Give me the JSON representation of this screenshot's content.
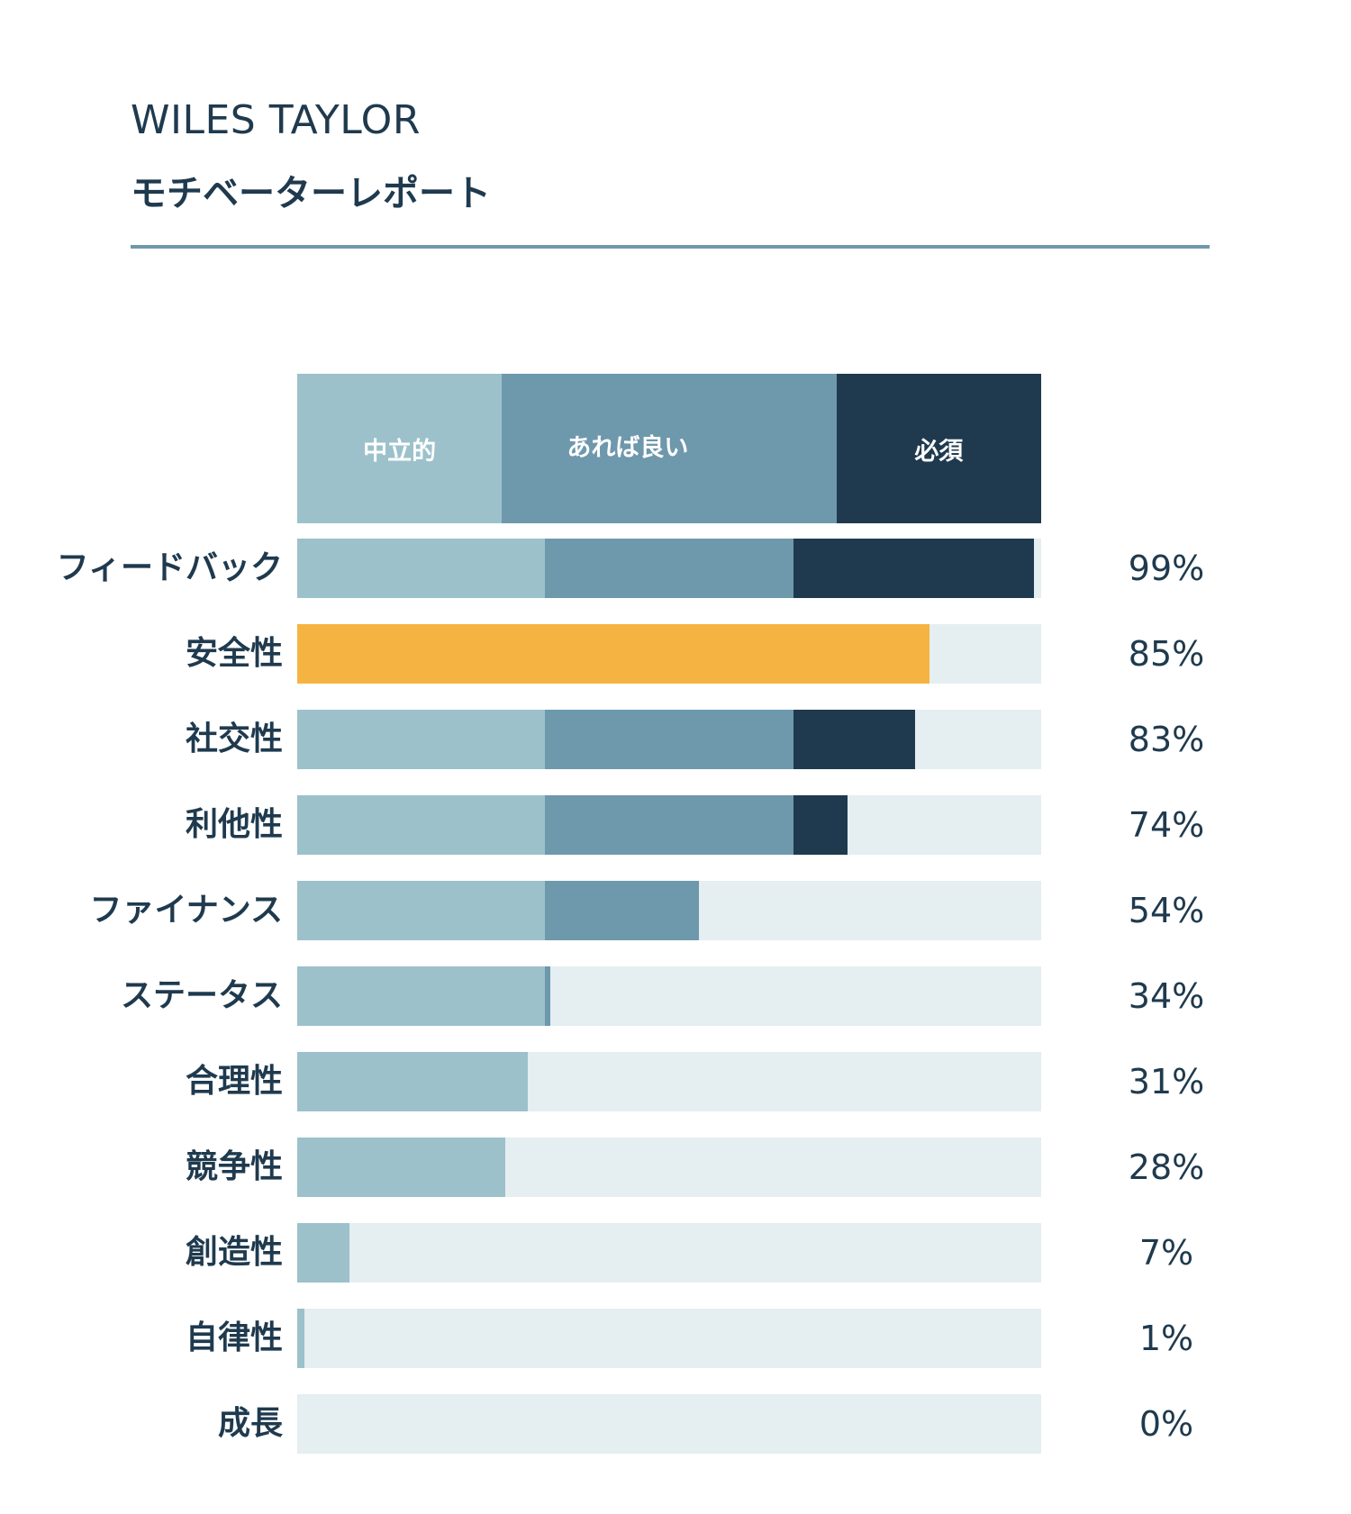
{
  "report": {
    "brand": "WILES TAYLOR",
    "title": "モチベーターレポート"
  },
  "colors": {
    "neutral": "#9cc1cb",
    "nice_to_have": "#6e98ac",
    "required": "#1f3a4e",
    "highlight": "#f5b441",
    "track": "#e5eef1"
  },
  "chart_data": {
    "type": "bar",
    "orientation": "horizontal",
    "stacked": true,
    "xlim": [
      0,
      100
    ],
    "legend": {
      "placement": "top",
      "bands": [
        {
          "key": "neutral",
          "label": "中立的"
        },
        {
          "key": "nice_to_have",
          "label": "あれば良い"
        },
        {
          "key": "required",
          "label": "必須"
        }
      ],
      "band_boundaries": [
        0,
        33.33,
        66.67,
        100
      ]
    },
    "categories": [
      "フィードバック",
      "安全性",
      "社交性",
      "利他性",
      "ファイナンス",
      "ステータス",
      "合理性",
      "競争性",
      "創造性",
      "自律性",
      "成長"
    ],
    "values": [
      99,
      85,
      83,
      74,
      54,
      34,
      31,
      28,
      7,
      1,
      0
    ],
    "value_labels": [
      "99%",
      "85%",
      "83%",
      "74%",
      "54%",
      "34%",
      "31%",
      "28%",
      "7%",
      "1%",
      "0%"
    ],
    "highlighted": [
      "安全性"
    ]
  }
}
